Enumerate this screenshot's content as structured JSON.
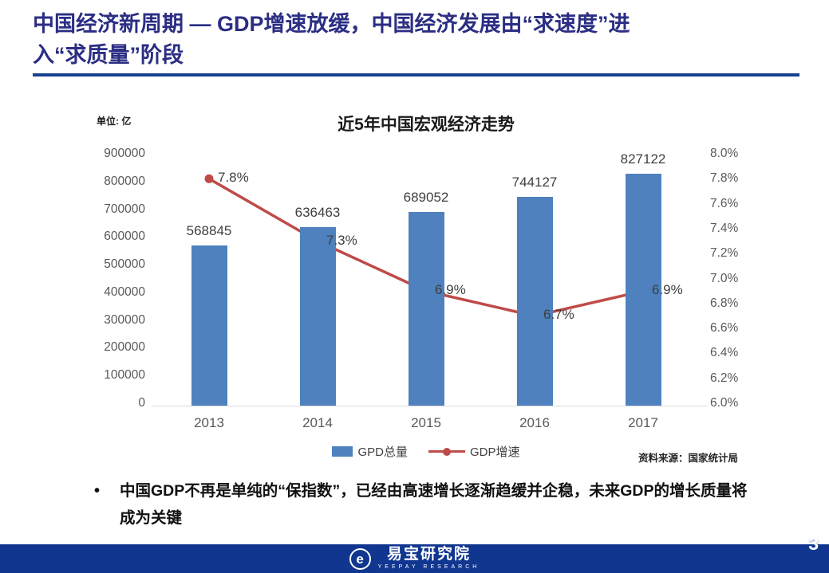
{
  "slide": {
    "title_line1": "中国经济新周期 — GDP增速放缓，中国经济发展由“求速度”进",
    "title_line2": "入“求质量”阶段",
    "page_number": "3"
  },
  "chart": {
    "unit_label": "单位: 亿",
    "title": "近5年中国宏观经济走势",
    "source": "资料来源：国家统计局",
    "legend_items": [
      {
        "label": "GPD总量",
        "type": "bar"
      },
      {
        "label": "GDP增速",
        "type": "line"
      }
    ]
  },
  "chart_data": {
    "type": "bar+line",
    "title": "近5年中国宏观经济走势",
    "categories": [
      "2013",
      "2014",
      "2015",
      "2016",
      "2017"
    ],
    "series": [
      {
        "name": "GPD总量",
        "type": "bar",
        "axis": "left",
        "values": [
          568845,
          636463,
          689052,
          744127,
          827122
        ],
        "labels": [
          "568845",
          "636463",
          "689052",
          "744127",
          "827122"
        ]
      },
      {
        "name": "GDP增速",
        "type": "line",
        "axis": "right",
        "values": [
          7.8,
          7.3,
          6.9,
          6.7,
          6.9
        ],
        "labels": [
          "7.8%",
          "7.3%",
          "6.9%",
          "6.7%",
          "6.9%"
        ]
      }
    ],
    "left_axis": {
      "min": 0,
      "max": 900000,
      "unit": "亿",
      "ticks": [
        "900000",
        "800000",
        "700000",
        "600000",
        "500000",
        "400000",
        "300000",
        "200000",
        "100000",
        "0"
      ]
    },
    "right_axis": {
      "min": 6.0,
      "max": 8.0,
      "ticks": [
        "8.0%",
        "7.8%",
        "7.6%",
        "7.4%",
        "7.2%",
        "7.0%",
        "6.8%",
        "6.6%",
        "6.4%",
        "6.2%",
        "6.0%"
      ]
    },
    "grid": false,
    "legend_position": "bottom"
  },
  "bullet": {
    "marker": "•",
    "text": "中国GDP不再是单纯的“保指数”，已经由高速增长逐渐趋缓并企稳，未来GDP的增长质量将成为关键"
  },
  "footer": {
    "logo_letter": "e",
    "brand_cn": "易宝研究院",
    "brand_en": "YEEPAY RESEARCH"
  },
  "colors": {
    "title_navy": "#2B2E83",
    "underline_blue": "#17418F",
    "bar_blue": "#4E81BD",
    "line_red": "#BE4B48",
    "axis_gray": "#595959",
    "footer_navy": "#113690"
  }
}
